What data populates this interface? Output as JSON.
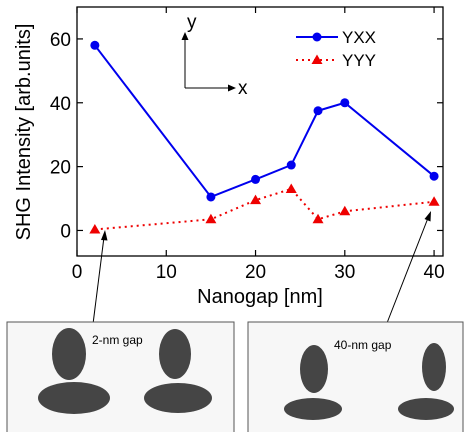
{
  "chart_data": {
    "type": "line",
    "xlabel": "Nanogap [nm]",
    "ylabel": "SHG Intensity [arb.units]",
    "xlim": [
      0,
      41
    ],
    "ylim": [
      -8,
      70
    ],
    "xticks": [
      0,
      10,
      20,
      30,
      40
    ],
    "yticks": [
      0,
      20,
      40,
      60
    ],
    "grid": false,
    "legend_position": "top-right",
    "series": [
      {
        "name": "YXX",
        "color": "#0000ee",
        "marker": "circle",
        "line_style": "solid",
        "x": [
          2,
          15,
          20,
          24,
          27,
          30,
          40
        ],
        "y": [
          58,
          10.5,
          16,
          20.5,
          37.5,
          40,
          17
        ]
      },
      {
        "name": "YYY",
        "color": "#ee0000",
        "marker": "triangle",
        "line_style": "dotted",
        "x": [
          2,
          15,
          20,
          24,
          27,
          30,
          40
        ],
        "y": [
          0.3,
          3.5,
          9.5,
          13,
          3.5,
          6,
          9
        ]
      }
    ],
    "coordinate_axes": {
      "x_label": "x",
      "y_label": "y"
    },
    "insets": [
      {
        "label": "2-nm gap",
        "points_to_x": 2
      },
      {
        "label": "40-nm gap",
        "points_to_x": 40
      }
    ]
  }
}
